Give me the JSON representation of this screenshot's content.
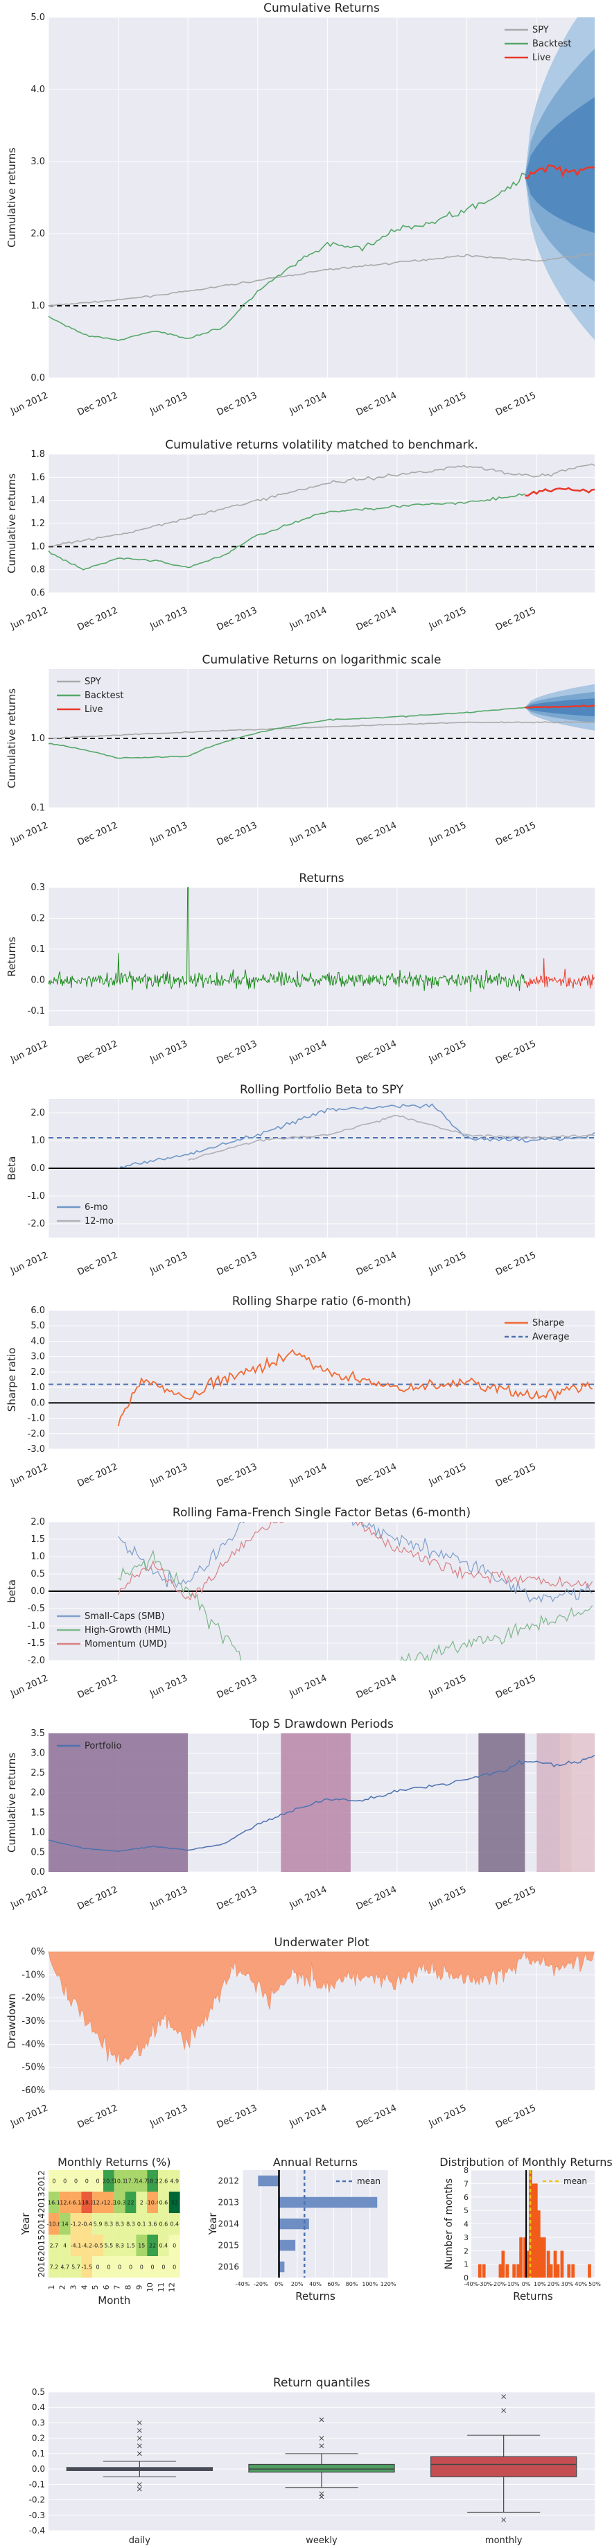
{
  "colors": {
    "panel_bg": "#eaeaf2",
    "grid": "#ffffff",
    "spy": "#a9a9a9",
    "backtest": "#55a868",
    "live": "#e8392a",
    "returns_backtest": "#1b8a1b",
    "beta": "#4c72b0",
    "sharpe": "#f06a33",
    "smb": "#4c72b0",
    "hml": "#55a868",
    "umd": "#c44e52",
    "portfolio": "#4c72b0",
    "underwater": "#f7a07a",
    "drawdown_shades": [
      "#8d6e97",
      "#b986a9",
      "#7d6c8a",
      "#d4b4c4",
      "#e3c4cc"
    ],
    "bar_blue": "#6f8fc4",
    "hist_orange": "#f25c1b",
    "box_daily": "#4e5d80",
    "box_weekly": "#4f9e62",
    "box_monthly": "#c44e52",
    "heat": [
      "#f5fab4",
      "#fde08c",
      "#fca85e",
      "#e95b3a",
      "#a8d66a",
      "#39a04b",
      "#006837"
    ]
  },
  "dates": [
    "Jun 2012",
    "Dec 2012",
    "Jun 2013",
    "Dec 2013",
    "Jun 2014",
    "Dec 2014",
    "Jun 2015",
    "Dec 2015"
  ],
  "chart_data": [
    {
      "type": "line",
      "title": "Cumulative Returns",
      "xlabel": "",
      "ylabel": "Cumulative returns",
      "ylim": [
        0.0,
        5.0
      ],
      "y_ticks": [
        "0.0",
        "1.0",
        "2.0",
        "3.0",
        "4.0",
        "5.0"
      ],
      "x_ticks": [
        "Jun 2012",
        "Dec 2012",
        "Jun 2013",
        "Dec 2013",
        "Jun 2014",
        "Dec 2014",
        "Jun 2015",
        "Dec 2015"
      ],
      "legend": [
        "SPY",
        "Backtest",
        "Live"
      ],
      "legend_position": "top-right",
      "hline": 1.0,
      "series": [
        {
          "name": "SPY",
          "x": [
            "Jun 2012",
            "Dec 2012",
            "Jun 2013",
            "Dec 2013",
            "Jun 2014",
            "Dec 2014",
            "Jun 2015",
            "Dec 2015",
            "May 2016"
          ],
          "values": [
            1.0,
            1.08,
            1.2,
            1.35,
            1.5,
            1.6,
            1.7,
            1.62,
            1.72
          ]
        },
        {
          "name": "Backtest",
          "x": [
            "Jun 2012",
            "Sep 2012",
            "Dec 2012",
            "Mar 2013",
            "Jun 2013",
            "Sep 2013",
            "Dec 2013",
            "Mar 2014",
            "Jun 2014",
            "Sep 2014",
            "Dec 2014",
            "Mar 2015",
            "Jun 2015",
            "Sep 2015",
            "Nov 2015"
          ],
          "values": [
            0.85,
            0.6,
            0.52,
            0.65,
            0.55,
            0.7,
            1.2,
            1.55,
            1.85,
            1.8,
            2.05,
            2.15,
            2.35,
            2.55,
            2.8
          ]
        },
        {
          "name": "Live",
          "x": [
            "Nov 2015",
            "Jan 2016",
            "Mar 2016",
            "May 2016"
          ],
          "values": [
            2.8,
            2.95,
            2.85,
            2.95
          ]
        }
      ]
    },
    {
      "type": "line",
      "title": "Cumulative returns volatility matched to benchmark.",
      "xlabel": "",
      "ylabel": "Cumulative returns",
      "ylim": [
        0.6,
        1.8
      ],
      "y_ticks": [
        "0.6",
        "0.8",
        "1.0",
        "1.2",
        "1.4",
        "1.6",
        "1.8"
      ],
      "x_ticks": [
        "Jun 2012",
        "Dec 2012",
        "Jun 2013",
        "Dec 2013",
        "Jun 2014",
        "Dec 2014",
        "Jun 2015",
        "Dec 2015"
      ],
      "hline": 1.0,
      "series": [
        {
          "name": "SPY",
          "x": [
            "Jun 2012",
            "Dec 2012",
            "Jun 2013",
            "Dec 2013",
            "Jun 2014",
            "Dec 2014",
            "Jun 2015",
            "Dec 2015",
            "May 2016"
          ],
          "values": [
            1.0,
            1.1,
            1.25,
            1.4,
            1.55,
            1.62,
            1.7,
            1.6,
            1.72
          ]
        },
        {
          "name": "Backtest",
          "x": [
            "Jun 2012",
            "Sep 2012",
            "Dec 2012",
            "Mar 2013",
            "Jun 2013",
            "Sep 2013",
            "Dec 2013",
            "Mar 2014",
            "Jun 2014",
            "Dec 2014",
            "Jun 2015",
            "Nov 2015"
          ],
          "values": [
            0.95,
            0.8,
            0.9,
            0.88,
            0.82,
            0.92,
            1.1,
            1.2,
            1.3,
            1.35,
            1.38,
            1.45
          ]
        },
        {
          "name": "Live",
          "x": [
            "Nov 2015",
            "Feb 2016",
            "May 2016"
          ],
          "values": [
            1.45,
            1.5,
            1.48
          ]
        }
      ]
    },
    {
      "type": "line",
      "title": "Cumulative Returns on logarithmic scale",
      "xlabel": "",
      "ylabel": "Cumulative returns",
      "y_scale": "log",
      "ylim": [
        0.1,
        10
      ],
      "y_ticks": [
        "0.1",
        "1.0"
      ],
      "x_ticks": [
        "Jun 2012",
        "Dec 2012",
        "Jun 2013",
        "Dec 2013",
        "Jun 2014",
        "Dec 2014",
        "Jun 2015",
        "Dec 2015"
      ],
      "legend": [
        "SPY",
        "Backtest",
        "Live"
      ],
      "legend_position": "top-left",
      "hline": 1.0,
      "series": [
        {
          "name": "SPY",
          "x": [
            "Jun 2012",
            "Dec 2013",
            "Jun 2015",
            "May 2016"
          ],
          "values": [
            1.0,
            1.35,
            1.7,
            1.72
          ]
        },
        {
          "name": "Backtest",
          "x": [
            "Jun 2012",
            "Dec 2012",
            "Jun 2013",
            "Dec 2013",
            "Jun 2014",
            "Dec 2014",
            "Jun 2015",
            "Nov 2015"
          ],
          "values": [
            0.85,
            0.52,
            0.55,
            1.2,
            1.85,
            2.05,
            2.35,
            2.8
          ]
        },
        {
          "name": "Live",
          "x": [
            "Nov 2015",
            "May 2016"
          ],
          "values": [
            2.8,
            2.95
          ]
        }
      ]
    },
    {
      "type": "line",
      "title": "Returns",
      "xlabel": "",
      "ylabel": "Returns",
      "ylim": [
        -0.15,
        0.3
      ],
      "y_ticks": [
        "-0.1",
        "0.0",
        "0.1",
        "0.2",
        "0.3"
      ],
      "x_ticks": [
        "Jun 2012",
        "Dec 2012",
        "Jun 2013",
        "Dec 2013",
        "Jun 2014",
        "Dec 2014",
        "Jun 2015",
        "Dec 2015"
      ]
    },
    {
      "type": "line",
      "title": "Rolling Portfolio Beta to SPY",
      "xlabel": "",
      "ylabel": "Beta",
      "ylim": [
        -2.5,
        2.5
      ],
      "y_ticks": [
        "-2.0",
        "-1.0",
        "0.0",
        "1.0",
        "2.0"
      ],
      "x_ticks": [
        "Jun 2012",
        "Dec 2012",
        "Jun 2013",
        "Dec 2013",
        "Jun 2014",
        "Dec 2014",
        "Jun 2015",
        "Dec 2015"
      ],
      "legend": [
        "6-mo",
        "12-mo"
      ],
      "legend_position": "bottom-left",
      "hline_mean": 1.1
    },
    {
      "type": "line",
      "title": "Rolling Sharpe ratio (6-month)",
      "xlabel": "",
      "ylabel": "Sharpe ratio",
      "ylim": [
        -3.0,
        6.0
      ],
      "y_ticks": [
        "-3.0",
        "-2.0",
        "-1.0",
        "0.0",
        "1.0",
        "2.0",
        "3.0",
        "4.0",
        "5.0",
        "6.0"
      ],
      "x_ticks": [
        "Jun 2012",
        "Dec 2012",
        "Jun 2013",
        "Dec 2013",
        "Jun 2014",
        "Dec 2014",
        "Jun 2015",
        "Dec 2015"
      ],
      "legend": [
        "Sharpe",
        "Average"
      ],
      "legend_position": "top-right",
      "hline_mean": 1.2
    },
    {
      "type": "line",
      "title": "Rolling Fama-French Single Factor Betas (6-month)",
      "xlabel": "",
      "ylabel": "beta",
      "ylim": [
        -2.0,
        2.0
      ],
      "y_ticks": [
        "-2.0",
        "-1.5",
        "-1.0",
        "-0.5",
        "0.0",
        "0.5",
        "1.0",
        "1.5",
        "2.0"
      ],
      "x_ticks": [
        "Jun 2012",
        "Dec 2012",
        "Jun 2013",
        "Dec 2013",
        "Jun 2014",
        "Dec 2014",
        "Jun 2015",
        "Dec 2015"
      ],
      "legend": [
        "Small-Caps (SMB)",
        "High-Growth (HML)",
        "Momentum (UMD)"
      ],
      "legend_position": "bottom-left"
    },
    {
      "type": "line",
      "title": "Top 5 Drawdown Periods",
      "xlabel": "",
      "ylabel": "Cumulative returns",
      "ylim": [
        0.0,
        3.5
      ],
      "y_ticks": [
        "0.0",
        "0.5",
        "1.0",
        "1.5",
        "2.0",
        "2.5",
        "3.0",
        "3.5"
      ],
      "x_ticks": [
        "Jun 2012",
        "Dec 2012",
        "Jun 2013",
        "Dec 2013",
        "Jun 2014",
        "Dec 2014",
        "Jun 2015",
        "Dec 2015"
      ],
      "legend": [
        "Portfolio"
      ],
      "legend_position": "top-left"
    },
    {
      "type": "area",
      "title": "Underwater Plot",
      "xlabel": "",
      "ylabel": "Drawdown",
      "ylim": [
        -60,
        0
      ],
      "y_ticks": [
        "-60%",
        "-50%",
        "-40%",
        "-30%",
        "-20%",
        "-10%",
        "0%"
      ],
      "x_ticks": [
        "Jun 2012",
        "Dec 2012",
        "Jun 2013",
        "Dec 2013",
        "Jun 2014",
        "Dec 2014",
        "Jun 2015",
        "Dec 2015"
      ]
    },
    {
      "type": "heatmap",
      "title": "Monthly Returns (%)",
      "xlabel": "Month",
      "ylabel": "Year",
      "years": [
        "2012",
        "2013",
        "2014",
        "2015",
        "2016"
      ],
      "months": [
        "1",
        "2",
        "3",
        "4",
        "5",
        "6",
        "7",
        "8",
        "9",
        "10",
        "11",
        "12"
      ],
      "values": [
        [
          0.0,
          0.0,
          0.0,
          0.0,
          0.0,
          20.5,
          10.1,
          17.7,
          14.7,
          18.2,
          2.6,
          4.9
        ],
        [
          16.1,
          -12.6,
          -6.1,
          -18.1,
          -12.4,
          -12.3,
          10.3,
          22.0,
          2.0,
          -10.4,
          0.6,
          32.0
        ],
        [
          -10.6,
          14.0,
          -1.2,
          -0.4,
          5.9,
          8.3,
          8.3,
          8.3,
          0.1,
          3.6,
          0.6,
          0.4
        ],
        [
          2.7,
          4.0,
          -4.1,
          -4.2,
          -0.5,
          5.5,
          8.3,
          1.5,
          15.0,
          22.0,
          0.4,
          0.0
        ],
        [
          7.2,
          4.7,
          5.7,
          -1.5,
          0.0,
          0.0,
          0.0,
          0.0,
          0.0,
          0.0,
          0.0,
          0.0
        ]
      ],
      "value_labels": [
        [
          "0",
          "0",
          "0",
          "0",
          "0",
          "20.5",
          "10.1",
          "17.7",
          "14.7",
          "18.2",
          "2.6",
          "4.9"
        ],
        [
          "16.1",
          "-12.6",
          "-6.1",
          "-18.1",
          "-12.4",
          "-12.3",
          "10.3",
          "22",
          "2",
          "-10.4",
          "0.6",
          "32"
        ],
        [
          "-10.6",
          "14",
          "-1.2",
          "-0.4",
          "5.9",
          "8.3",
          "8.3",
          "8.3",
          "0.1",
          "3.6",
          "0.6",
          "0.4"
        ],
        [
          "2.7",
          "4",
          "-4.1",
          "-4.2",
          "-0.5",
          "5.5",
          "8.3",
          "1.5",
          "15",
          "22",
          "0.4",
          "0"
        ],
        [
          "7.2",
          "4.7",
          "5.7",
          "-1.5",
          "0",
          "0",
          "0",
          "0",
          "0",
          "0",
          "0",
          "0"
        ]
      ]
    },
    {
      "type": "bar",
      "orientation": "horizontal",
      "title": "Annual Returns",
      "xlabel": "Returns",
      "ylabel": "Year",
      "categories": [
        "2012",
        "2013",
        "2014",
        "2015",
        "2016"
      ],
      "values": [
        -23,
        108,
        33,
        18,
        6
      ],
      "x_ticks": [
        "-40%",
        "-20%",
        "0%",
        "20%",
        "40%",
        "60%",
        "80%",
        "100%",
        "120%"
      ],
      "xlim": [
        -40,
        120
      ],
      "legend": [
        "mean"
      ],
      "mean": 28
    },
    {
      "type": "bar",
      "subtype": "histogram",
      "title": "Distribution of Monthly Returns",
      "xlabel": "Returns",
      "ylabel": "Number of months",
      "x_ticks": [
        "-40%",
        "-30%",
        "-20%",
        "-10%",
        "0%",
        "10%",
        "20%",
        "30%",
        "40%",
        "50%"
      ],
      "y_ticks": [
        "0",
        "1",
        "2",
        "3",
        "4",
        "5",
        "6",
        "7",
        "8"
      ],
      "ylim": [
        0,
        8
      ],
      "xlim": [
        -40,
        50
      ],
      "legend": [
        "mean"
      ],
      "mean": 3,
      "bins": [
        -35,
        -32,
        -20,
        -18,
        -15,
        -10,
        -7,
        -5,
        -2,
        0,
        2,
        4,
        6,
        8,
        10,
        12,
        15,
        17,
        20,
        22,
        25,
        30,
        33,
        45
      ],
      "counts": [
        1,
        1,
        1,
        2,
        1,
        1,
        1,
        3,
        3,
        2,
        8,
        7,
        7,
        5,
        3,
        3,
        2,
        1,
        2,
        1,
        2,
        1,
        1,
        1
      ]
    },
    {
      "type": "box",
      "title": "Return quantiles",
      "categories": [
        "daily",
        "weekly",
        "monthly"
      ],
      "y_ticks": [
        "-0.4",
        "-0.3",
        "-0.2",
        "-0.1",
        "0.0",
        "0.1",
        "0.2",
        "0.3",
        "0.4",
        "0.5"
      ],
      "ylim": [
        -0.4,
        0.5
      ],
      "boxes": [
        {
          "name": "daily",
          "q1": -0.01,
          "median": 0.0,
          "q3": 0.01,
          "whisker_low": -0.05,
          "whisker_high": 0.05,
          "outliers": [
            0.3,
            0.25,
            0.2,
            0.15,
            0.1,
            -0.1,
            -0.13
          ]
        },
        {
          "name": "weekly",
          "q1": -0.02,
          "median": 0.0,
          "q3": 0.03,
          "whisker_low": -0.12,
          "whisker_high": 0.1,
          "outliers": [
            0.32,
            0.2,
            0.15,
            -0.16,
            -0.18
          ]
        },
        {
          "name": "monthly",
          "q1": -0.05,
          "median": 0.03,
          "q3": 0.08,
          "whisker_low": -0.28,
          "whisker_high": 0.22,
          "outliers": [
            0.47,
            0.38,
            -0.33
          ]
        }
      ]
    }
  ]
}
